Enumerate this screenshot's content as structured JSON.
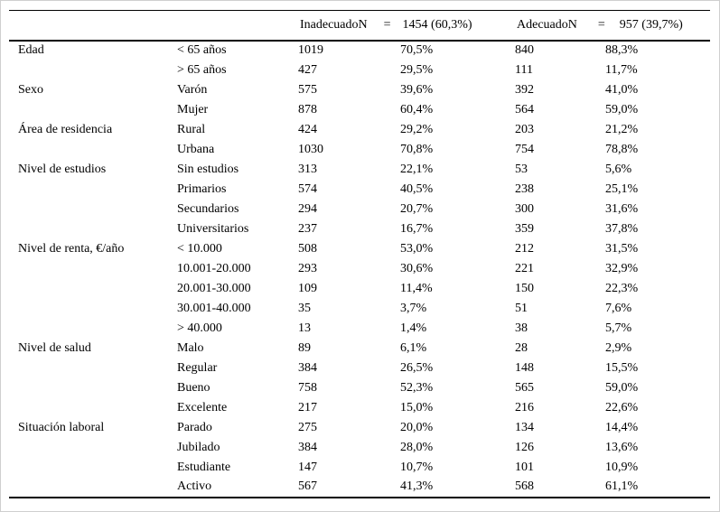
{
  "table": {
    "header": {
      "inadecuado": {
        "label": "InadecuadoN",
        "eq": "=",
        "total": "1454 (60,3%)"
      },
      "adecuado": {
        "label": "AdecuadoN",
        "eq": "=",
        "total": "957 (39,7%)"
      }
    },
    "rows": [
      {
        "category": "Edad",
        "subcategory": "< 65 años",
        "n1": "1019",
        "pct1": "70,5%",
        "n2": "840",
        "pct2": "88,3%"
      },
      {
        "category": "",
        "subcategory": "> 65 años",
        "n1": "427",
        "pct1": "29,5%",
        "n2": "111",
        "pct2": "11,7%"
      },
      {
        "category": "Sexo",
        "subcategory": "Varón",
        "n1": "575",
        "pct1": "39,6%",
        "n2": "392",
        "pct2": "41,0%"
      },
      {
        "category": "",
        "subcategory": "Mujer",
        "n1": "878",
        "pct1": "60,4%",
        "n2": "564",
        "pct2": "59,0%"
      },
      {
        "category": "Área de residencia",
        "subcategory": "Rural",
        "n1": "424",
        "pct1": "29,2%",
        "n2": "203",
        "pct2": "21,2%"
      },
      {
        "category": "",
        "subcategory": "Urbana",
        "n1": "1030",
        "pct1": "70,8%",
        "n2": "754",
        "pct2": "78,8%"
      },
      {
        "category": "Nivel de estudios",
        "subcategory": "Sin estudios",
        "n1": "313",
        "pct1": "22,1%",
        "n2": "53",
        "pct2": "5,6%"
      },
      {
        "category": "",
        "subcategory": "Primarios",
        "n1": "574",
        "pct1": "40,5%",
        "n2": "238",
        "pct2": "25,1%"
      },
      {
        "category": "",
        "subcategory": "Secundarios",
        "n1": "294",
        "pct1": "20,7%",
        "n2": "300",
        "pct2": "31,6%"
      },
      {
        "category": "",
        "subcategory": "Universitarios",
        "n1": "237",
        "pct1": "16,7%",
        "n2": "359",
        "pct2": "37,8%"
      },
      {
        "category": "Nivel de renta, €/año",
        "subcategory": "< 10.000",
        "n1": "508",
        "pct1": "53,0%",
        "n2": "212",
        "pct2": "31,5%"
      },
      {
        "category": "",
        "subcategory": "10.001-20.000",
        "n1": "293",
        "pct1": "30,6%",
        "n2": "221",
        "pct2": "32,9%"
      },
      {
        "category": "",
        "subcategory": "20.001-30.000",
        "n1": "109",
        "pct1": "11,4%",
        "n2": "150",
        "pct2": "22,3%"
      },
      {
        "category": "",
        "subcategory": "30.001-40.000",
        "n1": "35",
        "pct1": "3,7%",
        "n2": "51",
        "pct2": "7,6%"
      },
      {
        "category": "",
        "subcategory": "> 40.000",
        "n1": "13",
        "pct1": "1,4%",
        "n2": "38",
        "pct2": "5,7%"
      },
      {
        "category": "Nivel de salud",
        "subcategory": "Malo",
        "n1": "89",
        "pct1": "6,1%",
        "n2": "28",
        "pct2": "2,9%"
      },
      {
        "category": "",
        "subcategory": "Regular",
        "n1": "384",
        "pct1": "26,5%",
        "n2": "148",
        "pct2": "15,5%"
      },
      {
        "category": "",
        "subcategory": "Bueno",
        "n1": "758",
        "pct1": "52,3%",
        "n2": "565",
        "pct2": "59,0%"
      },
      {
        "category": "",
        "subcategory": "Excelente",
        "n1": "217",
        "pct1": "15,0%",
        "n2": "216",
        "pct2": "22,6%"
      },
      {
        "category": "Situación laboral",
        "subcategory": "Parado",
        "n1": "275",
        "pct1": "20,0%",
        "n2": "134",
        "pct2": "14,4%"
      },
      {
        "category": "",
        "subcategory": "Jubilado",
        "n1": "384",
        "pct1": "28,0%",
        "n2": "126",
        "pct2": "13,6%"
      },
      {
        "category": "",
        "subcategory": "Estudiante",
        "n1": "147",
        "pct1": "10,7%",
        "n2": "101",
        "pct2": "10,9%"
      },
      {
        "category": "",
        "subcategory": "Activo",
        "n1": "567",
        "pct1": "41,3%",
        "n2": "568",
        "pct2": "61,1%"
      }
    ]
  }
}
